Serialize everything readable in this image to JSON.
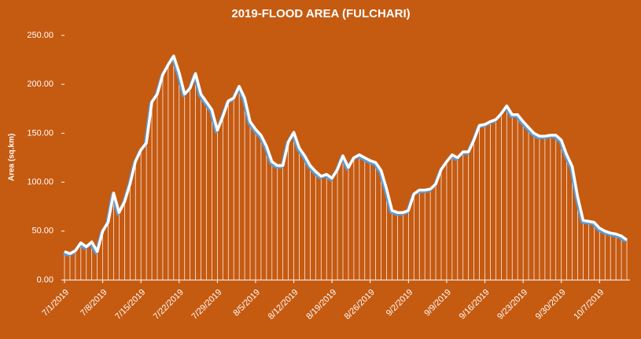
{
  "chart_data": {
    "type": "line",
    "title": "2019-FLOOD AREA (FULCHARI)",
    "y_label": "Area (sq.km)",
    "categories": [
      "7/1/2019",
      null,
      null,
      null,
      null,
      null,
      null,
      "7/8/2019",
      null,
      null,
      null,
      null,
      null,
      null,
      "7/15/2019",
      null,
      null,
      null,
      null,
      null,
      null,
      "7/22/2019",
      null,
      null,
      null,
      null,
      null,
      null,
      "7/29/2019",
      null,
      null,
      null,
      null,
      null,
      null,
      "8/5/2019",
      null,
      null,
      null,
      null,
      null,
      null,
      "8/12/2019",
      null,
      null,
      null,
      null,
      null,
      null,
      "8/19/2019",
      null,
      null,
      null,
      null,
      null,
      null,
      "8/26/2019",
      null,
      null,
      null,
      null,
      null,
      null,
      "9/2/2019",
      null,
      null,
      null,
      null,
      null,
      null,
      "9/9/2019",
      null,
      null,
      null,
      null,
      null,
      null,
      "9/16/2019",
      null,
      null,
      null,
      null,
      null,
      null,
      "9/23/2019",
      null,
      null,
      null,
      null,
      null,
      null,
      "9/30/2019",
      null,
      null,
      null,
      null,
      null,
      null,
      "10/7/2019",
      null,
      null,
      null,
      null,
      null
    ],
    "series": [
      {
        "name": "Area",
        "color": "#ffffff",
        "shadow_color": "#5b9bd5",
        "values": [
          29,
          27,
          30,
          38,
          34,
          39,
          29,
          50,
          59,
          89,
          69,
          80,
          98,
          121,
          133,
          140,
          182,
          190,
          210,
          220,
          229,
          212,
          190,
          196,
          211,
          190,
          182,
          174,
          153,
          167,
          183,
          186,
          198,
          186,
          162,
          154,
          148,
          137,
          121,
          117,
          117,
          141,
          151,
          135,
          127,
          117,
          111,
          106,
          108,
          104,
          113,
          127,
          115,
          125,
          128,
          125,
          122,
          120,
          112,
          93,
          71,
          69,
          69,
          71,
          88,
          92,
          92,
          93,
          98,
          113,
          121,
          128,
          125,
          131,
          131,
          143,
          158,
          159,
          162,
          164,
          170,
          178,
          169,
          169,
          162,
          156,
          150,
          147,
          147,
          148,
          148,
          143,
          128,
          116,
          85,
          61,
          60,
          59,
          53,
          50,
          48,
          47,
          45,
          41
        ]
      }
    ],
    "ylim": [
      0,
      250
    ],
    "yticks": [
      {
        "value": 0,
        "label": "0.00"
      },
      {
        "value": 50,
        "label": "50.00"
      },
      {
        "value": 100,
        "label": "100.00"
      },
      {
        "value": 150,
        "label": "150.00"
      },
      {
        "value": 200,
        "label": "200.00"
      },
      {
        "value": 250,
        "label": "250.00"
      }
    ],
    "drop_lines": true,
    "background": "#c55a11"
  }
}
